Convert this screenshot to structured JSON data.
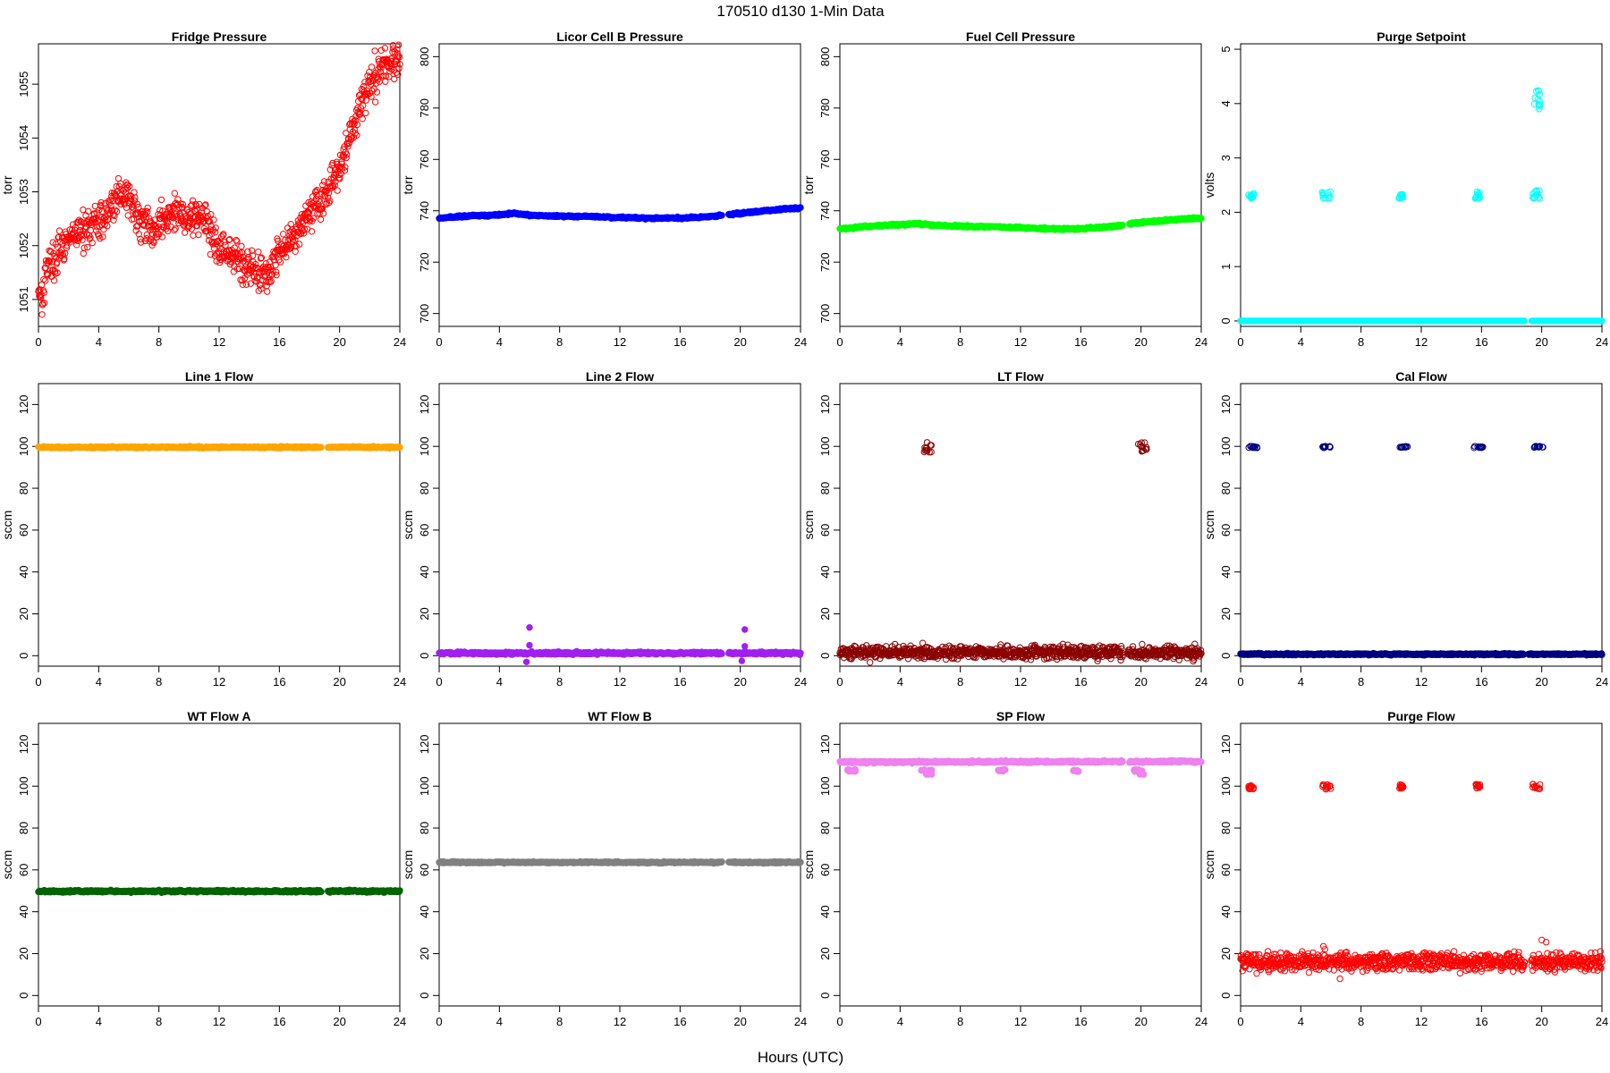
{
  "figure": {
    "title": "170510   d130   1-Min Data",
    "xlabel": "Hours (UTC)"
  },
  "chart_data": [
    {
      "type": "scatter",
      "title": "Fridge Pressure",
      "ylabel": "torr",
      "color": "#ff0000",
      "marker": "open",
      "xlim": [
        0,
        24
      ],
      "ylim": [
        1050.5,
        1055.75
      ],
      "xticks": [
        0,
        4,
        8,
        12,
        16,
        20,
        24
      ],
      "yticks": [
        1051,
        1052,
        1053,
        1054,
        1055
      ],
      "points": [
        [
          0,
          1051.2
        ],
        [
          0.3,
          1051.1
        ],
        [
          0.6,
          1051.7
        ],
        [
          1,
          1051.7
        ],
        [
          1.5,
          1051.9
        ],
        [
          2,
          1052.1
        ],
        [
          2.5,
          1052.2
        ],
        [
          3,
          1052.3
        ],
        [
          3.5,
          1052.4
        ],
        [
          4,
          1052.4
        ],
        [
          4.5,
          1052.6
        ],
        [
          5,
          1052.8
        ],
        [
          5.5,
          1053.0
        ],
        [
          6,
          1052.9
        ],
        [
          6.5,
          1052.5
        ],
        [
          7,
          1052.4
        ],
        [
          7.5,
          1052.3
        ],
        [
          8,
          1052.4
        ],
        [
          8.5,
          1052.5
        ],
        [
          9,
          1052.6
        ],
        [
          9.5,
          1052.6
        ],
        [
          10,
          1052.5
        ],
        [
          10.5,
          1052.6
        ],
        [
          11,
          1052.5
        ],
        [
          11.5,
          1052.2
        ],
        [
          12,
          1051.9
        ],
        [
          12.5,
          1051.8
        ],
        [
          13,
          1051.8
        ],
        [
          13.5,
          1051.7
        ],
        [
          14,
          1051.6
        ],
        [
          14.5,
          1051.5
        ],
        [
          15,
          1051.5
        ],
        [
          15.5,
          1051.6
        ],
        [
          16,
          1051.9
        ],
        [
          16.5,
          1052.1
        ],
        [
          17,
          1052.2
        ],
        [
          17.5,
          1052.4
        ],
        [
          18,
          1052.6
        ],
        [
          18.5,
          1052.8
        ],
        [
          19,
          1052.8
        ],
        [
          19.5,
          1053.2
        ],
        [
          20,
          1053.4
        ],
        [
          20.5,
          1053.9
        ],
        [
          21,
          1054.3
        ],
        [
          21.5,
          1054.7
        ],
        [
          22,
          1055.0
        ],
        [
          22.5,
          1055.2
        ],
        [
          23,
          1055.3
        ],
        [
          23.5,
          1055.4
        ],
        [
          24,
          1055.5
        ]
      ],
      "scatter": 0.28,
      "gaps": []
    },
    {
      "type": "scatter",
      "title": "Licor Cell B Pressure",
      "ylabel": "torr",
      "color": "#0000ff",
      "marker": "filled",
      "xlim": [
        0,
        24
      ],
      "ylim": [
        695,
        805
      ],
      "xticks": [
        0,
        4,
        8,
        12,
        16,
        20,
        24
      ],
      "yticks": [
        700,
        720,
        740,
        760,
        780,
        800
      ],
      "points": [
        [
          0,
          737.2
        ],
        [
          2,
          738.0
        ],
        [
          4,
          738.4
        ],
        [
          5,
          739.0
        ],
        [
          6,
          738.3
        ],
        [
          8,
          737.9
        ],
        [
          10,
          737.8
        ],
        [
          12,
          737.4
        ],
        [
          14,
          737.1
        ],
        [
          16,
          737.2
        ],
        [
          17.5,
          737.6
        ],
        [
          18.7,
          738.2
        ],
        [
          19.2,
          738.5
        ],
        [
          20,
          739.0
        ],
        [
          22,
          740.2
        ],
        [
          24,
          741.2
        ]
      ],
      "scatter": 0.3,
      "gaps": [
        [
          18.8,
          19.2
        ]
      ]
    },
    {
      "type": "scatter",
      "title": "Fuel Cell Pressure",
      "ylabel": "torr",
      "color": "#00ff00",
      "marker": "filled",
      "xlim": [
        0,
        24
      ],
      "ylim": [
        695,
        805
      ],
      "xticks": [
        0,
        4,
        8,
        12,
        16,
        20,
        24
      ],
      "yticks": [
        700,
        720,
        740,
        760,
        780,
        800
      ],
      "points": [
        [
          0,
          733.0
        ],
        [
          2,
          734.0
        ],
        [
          4,
          734.6
        ],
        [
          5,
          735.0
        ],
        [
          6,
          734.5
        ],
        [
          8,
          734.0
        ],
        [
          10,
          733.8
        ],
        [
          12,
          733.4
        ],
        [
          14,
          733.0
        ],
        [
          16,
          733.0
        ],
        [
          17.5,
          733.6
        ],
        [
          18.7,
          734.3
        ],
        [
          19.2,
          735.0
        ],
        [
          20,
          735.4
        ],
        [
          22,
          736.5
        ],
        [
          24,
          737.2
        ]
      ],
      "scatter": 0.3,
      "gaps": [
        [
          18.8,
          19.2
        ]
      ]
    },
    {
      "type": "scatter",
      "title": "Purge Setpoint",
      "ylabel": "volts",
      "color": "#00ffff",
      "marker": "open",
      "xlim": [
        0,
        24
      ],
      "ylim": [
        -0.1,
        5.1
      ],
      "xticks": [
        0,
        4,
        8,
        12,
        16,
        20,
        24
      ],
      "yticks": [
        0,
        1,
        2,
        3,
        4,
        5
      ],
      "points": [
        [
          0,
          0
        ],
        [
          24,
          0
        ]
      ],
      "scatter": 0,
      "gaps": [
        [
          18.9,
          19.3
        ]
      ],
      "clusters": [
        {
          "x": [
            0.5,
            0.9
          ],
          "y": [
            2.25,
            2.35
          ]
        },
        {
          "x": [
            5.4,
            6.0
          ],
          "y": [
            2.25,
            2.38
          ]
        },
        {
          "x": [
            10.5,
            10.8
          ],
          "y": [
            2.25,
            2.35
          ]
        },
        {
          "x": [
            15.5,
            15.9
          ],
          "y": [
            2.25,
            2.38
          ]
        },
        {
          "x": [
            19.4,
            19.9
          ],
          "y": [
            2.25,
            2.4
          ]
        },
        {
          "x": [
            19.5,
            19.9
          ],
          "y": [
            3.7,
            4.25
          ]
        }
      ]
    },
    {
      "type": "scatter",
      "title": "Line 1 Flow",
      "ylabel": "sccm",
      "color": "#ffa500",
      "marker": "filled",
      "xlim": [
        0,
        24
      ],
      "ylim": [
        -5,
        130
      ],
      "xticks": [
        0,
        4,
        8,
        12,
        16,
        20,
        24
      ],
      "yticks": [
        0,
        20,
        40,
        60,
        80,
        100,
        120
      ],
      "points": [
        [
          0,
          99.6
        ],
        [
          24,
          99.6
        ]
      ],
      "scatter": 0.3,
      "gaps": [
        [
          18.8,
          19.2
        ]
      ]
    },
    {
      "type": "scatter",
      "title": "Line 2 Flow",
      "ylabel": "sccm",
      "color": "#a020f0",
      "marker": "filled",
      "xlim": [
        0,
        24
      ],
      "ylim": [
        -5,
        130
      ],
      "xticks": [
        0,
        4,
        8,
        12,
        16,
        20,
        24
      ],
      "yticks": [
        0,
        20,
        40,
        60,
        80,
        100,
        120
      ],
      "points": [
        [
          0,
          1.2
        ],
        [
          24,
          1.2
        ]
      ],
      "scatter": 0.5,
      "gaps": [
        [
          18.8,
          19.2
        ]
      ],
      "outliers": [
        [
          6.0,
          13.5
        ],
        [
          6.0,
          5.0
        ],
        [
          5.8,
          -3.0
        ],
        [
          20.3,
          12.5
        ],
        [
          20.3,
          4.5
        ],
        [
          20.1,
          -2.5
        ]
      ]
    },
    {
      "type": "scatter",
      "title": "LT Flow",
      "ylabel": "sccm",
      "color": "#8b0000",
      "marker": "open",
      "xlim": [
        0,
        24
      ],
      "ylim": [
        -5,
        130
      ],
      "xticks": [
        0,
        4,
        8,
        12,
        16,
        20,
        24
      ],
      "yticks": [
        0,
        20,
        40,
        60,
        80,
        100,
        120
      ],
      "points": [
        [
          0,
          1.5
        ],
        [
          24,
          1.5
        ]
      ],
      "scatter": 2.5,
      "gaps": [
        [
          18.8,
          19.1
        ]
      ],
      "clusters": [
        {
          "x": [
            5.6,
            6.1
          ],
          "y": [
            97,
            102
          ]
        },
        {
          "x": [
            19.8,
            20.4
          ],
          "y": [
            97,
            102
          ]
        }
      ]
    },
    {
      "type": "scatter",
      "title": "Cal Flow",
      "ylabel": "sccm",
      "color": "#000080",
      "marker": "open",
      "xlim": [
        0,
        24
      ],
      "ylim": [
        -5,
        130
      ],
      "xticks": [
        0,
        4,
        8,
        12,
        16,
        20,
        24
      ],
      "yticks": [
        0,
        20,
        40,
        60,
        80,
        100,
        120
      ],
      "points": [
        [
          0,
          0.7
        ],
        [
          24,
          0.7
        ]
      ],
      "scatter": 0.3,
      "gaps": [
        [
          18.8,
          19.1
        ]
      ],
      "clusters": [
        {
          "x": [
            0.5,
            1.1
          ],
          "y": [
            99.3,
            100.1
          ]
        },
        {
          "x": [
            5.4,
            6.1
          ],
          "y": [
            99.3,
            100.1
          ]
        },
        {
          "x": [
            10.5,
            11.1
          ],
          "y": [
            99.3,
            100.1
          ]
        },
        {
          "x": [
            15.5,
            16.1
          ],
          "y": [
            99.3,
            100.1
          ]
        },
        {
          "x": [
            19.4,
            20.1
          ],
          "y": [
            99.3,
            100.1
          ]
        }
      ]
    },
    {
      "type": "scatter",
      "title": "WT Flow A",
      "ylabel": "sccm",
      "color": "#006400",
      "marker": "filled",
      "xlim": [
        0,
        24
      ],
      "ylim": [
        -5,
        130
      ],
      "xticks": [
        0,
        4,
        8,
        12,
        16,
        20,
        24
      ],
      "yticks": [
        0,
        20,
        40,
        60,
        80,
        100,
        120
      ],
      "points": [
        [
          0,
          49.8
        ],
        [
          24,
          49.8
        ]
      ],
      "scatter": 0.4,
      "gaps": [
        [
          18.8,
          19.2
        ]
      ]
    },
    {
      "type": "scatter",
      "title": "WT Flow B",
      "ylabel": "sccm",
      "color": "#808080",
      "marker": "filled",
      "xlim": [
        0,
        24
      ],
      "ylim": [
        -5,
        130
      ],
      "xticks": [
        0,
        4,
        8,
        12,
        16,
        20,
        24
      ],
      "yticks": [
        0,
        20,
        40,
        60,
        80,
        100,
        120
      ],
      "points": [
        [
          0,
          63.6
        ],
        [
          24,
          63.6
        ]
      ],
      "scatter": 0.3,
      "gaps": [
        [
          18.8,
          19.2
        ]
      ]
    },
    {
      "type": "scatter",
      "title": "SP Flow",
      "ylabel": "sccm",
      "color": "#ee82ee",
      "marker": "filled",
      "xlim": [
        0,
        24
      ],
      "ylim": [
        -5,
        130
      ],
      "xticks": [
        0,
        4,
        8,
        12,
        16,
        20,
        24
      ],
      "yticks": [
        0,
        20,
        40,
        60,
        80,
        100,
        120
      ],
      "points": [
        [
          0,
          111.5
        ],
        [
          24,
          111.8
        ]
      ],
      "scatter": 0.4,
      "gaps": [
        [
          18.8,
          19.2
        ]
      ],
      "clusters": [
        {
          "x": [
            0.5,
            1.1
          ],
          "y": [
            107,
            108
          ]
        },
        {
          "x": [
            5.4,
            6.1
          ],
          "y": [
            107,
            108
          ]
        },
        {
          "x": [
            5.7,
            6.1
          ],
          "y": [
            105.5,
            106.5
          ]
        },
        {
          "x": [
            10.5,
            11.1
          ],
          "y": [
            107,
            108
          ]
        },
        {
          "x": [
            15.5,
            16.1
          ],
          "y": [
            107,
            108
          ]
        },
        {
          "x": [
            19.4,
            20.1
          ],
          "y": [
            107,
            108
          ]
        },
        {
          "x": [
            19.9,
            20.2
          ],
          "y": [
            105.5,
            106.5
          ]
        }
      ]
    },
    {
      "type": "scatter",
      "title": "Purge Flow",
      "ylabel": "sccm",
      "color": "#ff0000",
      "marker": "open",
      "xlim": [
        0,
        24
      ],
      "ylim": [
        -5,
        130
      ],
      "xticks": [
        0,
        4,
        8,
        12,
        16,
        20,
        24
      ],
      "yticks": [
        0,
        20,
        40,
        60,
        80,
        100,
        120
      ],
      "points": [
        [
          0,
          16
        ],
        [
          24,
          16
        ]
      ],
      "scatter": 3.5,
      "gaps": [
        [
          18.9,
          19.3
        ]
      ],
      "outliers": [
        [
          5.5,
          23.5
        ],
        [
          5.6,
          22.0
        ],
        [
          20.0,
          26.5
        ],
        [
          20.3,
          25.5
        ],
        [
          6.6,
          8.0
        ],
        [
          23.9,
          21.0
        ]
      ],
      "clusters": [
        {
          "x": [
            0.5,
            0.9
          ],
          "y": [
            98.5,
            101
          ]
        },
        {
          "x": [
            5.4,
            6.0
          ],
          "y": [
            98.5,
            101
          ]
        },
        {
          "x": [
            10.5,
            10.8
          ],
          "y": [
            98.5,
            101
          ]
        },
        {
          "x": [
            15.5,
            15.9
          ],
          "y": [
            98.5,
            101
          ]
        },
        {
          "x": [
            19.4,
            19.9
          ],
          "y": [
            98.5,
            101
          ]
        }
      ]
    }
  ]
}
